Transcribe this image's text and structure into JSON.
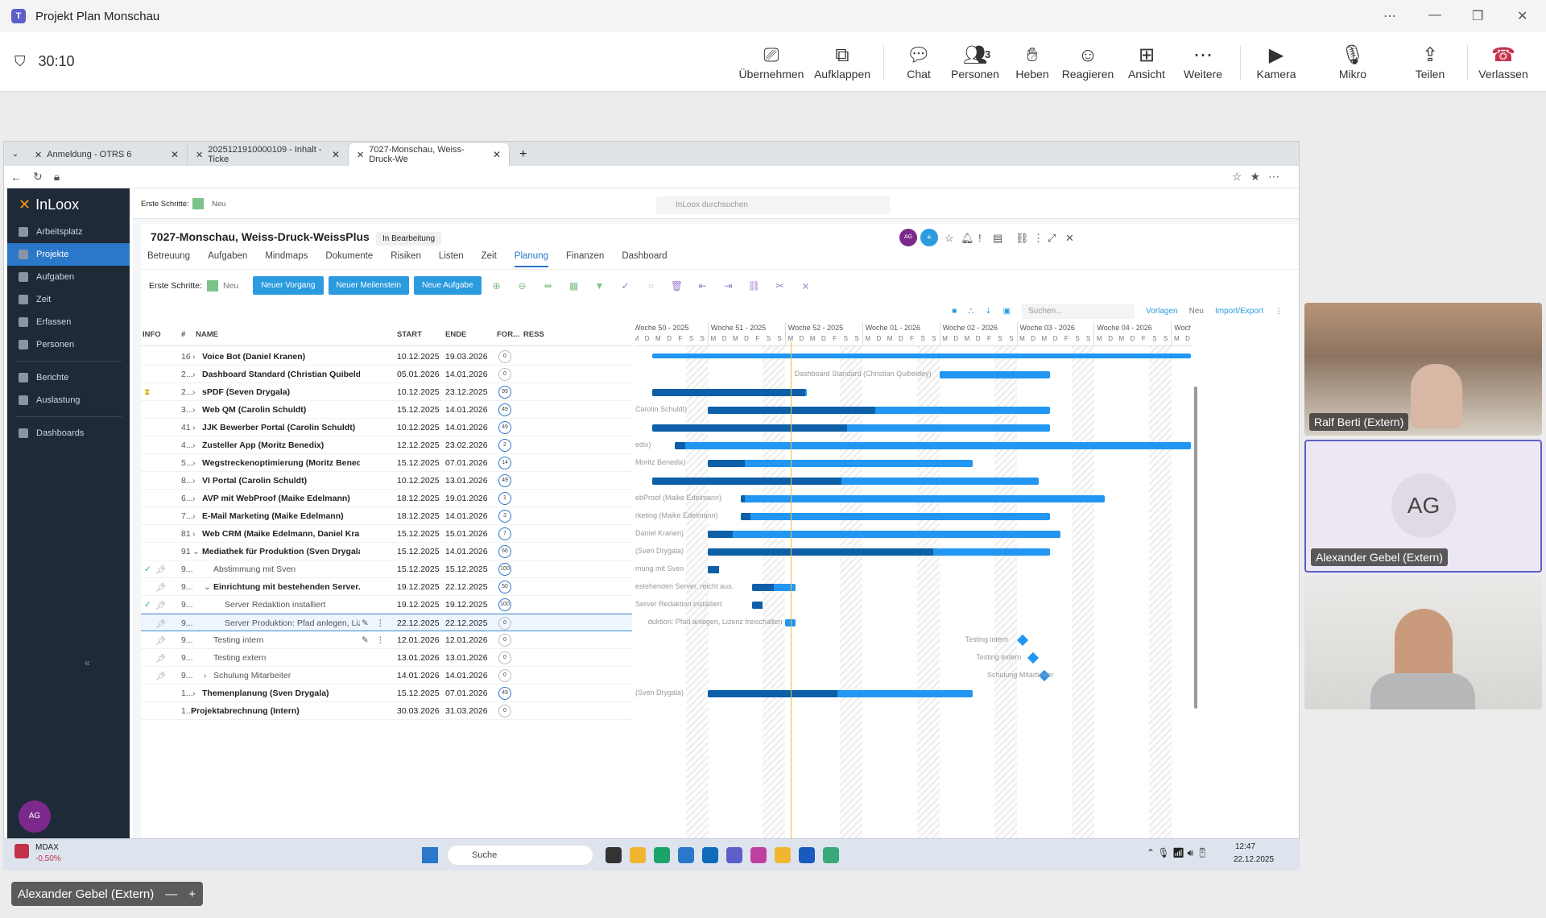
{
  "teams": {
    "window_title": "Projekt Plan Monschau",
    "timer": "30:10",
    "toolbar": [
      {
        "label": "Übernehmen",
        "icon": "share-screen-icon"
      },
      {
        "label": "Aufklappen",
        "icon": "popout-icon"
      },
      {
        "label": "Chat",
        "icon": "chat-icon"
      },
      {
        "label": "Personen",
        "icon": "people-icon",
        "count": "3"
      },
      {
        "label": "Heben",
        "icon": "raise-hand-icon"
      },
      {
        "label": "Reagieren",
        "icon": "react-icon"
      },
      {
        "label": "Ansicht",
        "icon": "view-icon"
      },
      {
        "label": "Weitere",
        "icon": "more-icon"
      },
      {
        "label": "Kamera",
        "icon": "camera-icon"
      },
      {
        "label": "Mikro",
        "icon": "mic-icon"
      },
      {
        "label": "Teilen",
        "icon": "share-icon"
      },
      {
        "label": "Verlassen",
        "icon": "hangup-icon"
      }
    ],
    "participants": [
      {
        "name": "Ralf Berti (Extern)"
      },
      {
        "name": "Alexander Gebel (Extern)",
        "initials": "AG"
      },
      {
        "name": ""
      }
    ],
    "pip_name": "Alexander Gebel (Extern)"
  },
  "browser": {
    "tabs": [
      {
        "label": "Anmeldung - OTRS 6"
      },
      {
        "label": "2025121910000109 - Inhalt - Ticke"
      },
      {
        "label": "7027-Monschau, Weiss-Druck-We"
      }
    ]
  },
  "inloox": {
    "brand": "InLoox",
    "nav": [
      "Arbeitsplatz",
      "Projekte",
      "Aufgaben",
      "Zeit",
      "Erfassen",
      "Personen",
      "Berichte",
      "Auslastung",
      "Dashboards"
    ],
    "active_nav": "Projekte",
    "user_initials": "AG",
    "top_first_steps": "Erste Schritte:",
    "top_new": "Neu",
    "search_placeholder": "InLoox durchsuchen",
    "project_title": "7027-Monschau, Weiss-Druck-WeissPlus",
    "project_status": "In Bearbeitung",
    "project_tabs": [
      "Betreuung",
      "Aufgaben",
      "Mindmaps",
      "Dokumente",
      "Risiken",
      "Listen",
      "Zeit",
      "Planung",
      "Finanzen",
      "Dashboard"
    ],
    "active_tab": "Planung",
    "toolbar": {
      "first_steps": "Erste Schritte:",
      "new": "Neu",
      "btn_vorgang": "Neuer Vorgang",
      "btn_meilenstein": "Neuer Meilenstein",
      "btn_aufgabe": "Neue Aufgabe",
      "search_placeholder": "Suchen...",
      "vorlagen": "Vorlagen",
      "neu2": "Neu",
      "import_export": "Import/Export"
    },
    "columns": {
      "info": "INFO",
      "num": "#",
      "name": "NAME",
      "start": "START",
      "end": "ENDE",
      "progress": "FOR...",
      "res": "RESS"
    },
    "rows": [
      {
        "num": "16",
        "name": "Voice Bot (Daniel Kranen)",
        "start": "10.12.2025",
        "end": "19.03.2026",
        "progress": "0",
        "bold": true,
        "level": 1
      },
      {
        "num": "2...",
        "name": "Dashboard Standard (Christian Quibeldey)",
        "start": "05.01.2026",
        "end": "14.01.2026",
        "progress": "0",
        "bold": true,
        "level": 1
      },
      {
        "num": "2...",
        "name": "sPDF (Seven Drygala)",
        "start": "10.12.2025",
        "end": "23.12.2025",
        "progress": "99",
        "bold": true,
        "level": 1
      },
      {
        "num": "3...",
        "name": "Web QM (Carolin Schuldt)",
        "start": "15.12.2025",
        "end": "14.01.2026",
        "progress": "49",
        "bold": true,
        "level": 1
      },
      {
        "num": "41",
        "name": "JJK Bewerber Portal (Carolin Schuldt)",
        "start": "10.12.2025",
        "end": "14.01.2026",
        "progress": "49",
        "bold": true,
        "level": 1
      },
      {
        "num": "4...",
        "name": "Zusteller App (Moritz Benedix)",
        "start": "12.12.2025",
        "end": "23.02.2026",
        "progress": "2",
        "bold": true,
        "level": 1
      },
      {
        "num": "5...",
        "name": "Wegstreckenoptimierung (Moritz Benedix)",
        "start": "15.12.2025",
        "end": "07.01.2026",
        "progress": "14",
        "bold": true,
        "level": 1
      },
      {
        "num": "8...",
        "name": "VI Portal (Carolin Schuldt)",
        "start": "10.12.2025",
        "end": "13.01.2026",
        "progress": "49",
        "bold": true,
        "level": 1
      },
      {
        "num": "6...",
        "name": "AVP mit WebProof (Maike Edelmann)",
        "start": "18.12.2025",
        "end": "19.01.2026",
        "progress": "1",
        "bold": true,
        "level": 1
      },
      {
        "num": "7...",
        "name": "E-Mail Marketing (Maike Edelmann)",
        "start": "18.12.2025",
        "end": "14.01.2026",
        "progress": "3",
        "bold": true,
        "level": 1
      },
      {
        "num": "81",
        "name": "Web CRM (Maike Edelmann, Daniel Kranen)",
        "start": "15.12.2025",
        "end": "15.01.2026",
        "progress": "7",
        "bold": true,
        "level": 1
      },
      {
        "num": "91",
        "name": "Mediathek für Produktion (Sven Drygala)",
        "start": "15.12.2025",
        "end": "14.01.2026",
        "progress": "66",
        "bold": true,
        "level": 1
      },
      {
        "num": "9...",
        "name": "Abstimmung mit Sven",
        "start": "15.12.2025",
        "end": "15.12.2025",
        "progress": "100",
        "bold": false,
        "level": 2
      },
      {
        "num": "9...",
        "name": "Einrichtung mit bestehenden Server. reicht aus.",
        "start": "19.12.2025",
        "end": "22.12.2025",
        "progress": "50",
        "bold": true,
        "level": 2
      },
      {
        "num": "9...",
        "name": "Server Redaktion installiert",
        "start": "19.12.2025",
        "end": "19.12.2025",
        "progress": "100",
        "bold": false,
        "level": 3
      },
      {
        "num": "9...",
        "name": "Server Produktion: Pfad anlegen, Lizenz",
        "start": "22.12.2025",
        "end": "22.12.2025",
        "progress": "0",
        "bold": false,
        "level": 3
      },
      {
        "num": "9...",
        "name": "Testing intern",
        "start": "12.01.2026",
        "end": "12.01.2026",
        "progress": "0",
        "bold": false,
        "level": 2
      },
      {
        "num": "9...",
        "name": "Testing extern",
        "start": "13.01.2026",
        "end": "13.01.2026",
        "progress": "0",
        "bold": false,
        "level": 2
      },
      {
        "num": "9...",
        "name": "Schulung Mitarbeiter",
        "start": "14.01.2026",
        "end": "14.01.2026",
        "progress": "0",
        "bold": false,
        "level": 2
      },
      {
        "num": "1...",
        "name": "Themenplanung (Sven Drygala)",
        "start": "15.12.2025",
        "end": "07.01.2026",
        "progress": "49",
        "bold": true,
        "level": 1
      },
      {
        "num": "1...",
        "name": "Projektabrechnung (Intern)",
        "start": "30.03.2026",
        "end": "31.03.2026",
        "progress": "0",
        "bold": true,
        "level": 0
      }
    ],
    "gantt_weeks": [
      "Woche 50 - 2025",
      "Woche 51 - 2025",
      "Woche 52 - 2025",
      "Woche 01 - 2026",
      "Woche 02 - 2026",
      "Woche 03 - 2026",
      "Woche 04 - 2026",
      "Woche"
    ],
    "gantt_days": [
      "M",
      "D",
      "M",
      "D",
      "F",
      "S",
      "S"
    ],
    "gantt_labels": [
      {
        "row": 1,
        "text": "Dashboard Standard (Christian Quibeldey)"
      },
      {
        "row": 3,
        "text": "Carolin Schuldt)"
      },
      {
        "row": 5,
        "text": "edix)"
      },
      {
        "row": 6,
        "text": "Moritz Benedix)"
      },
      {
        "row": 8,
        "text": "ebProof (Maike Edelmann)"
      },
      {
        "row": 9,
        "text": "rketing (Maike Edelmann)"
      },
      {
        "row": 10,
        "text": "Daniel Kranen)"
      },
      {
        "row": 11,
        "text": "(Sven Drygala)"
      },
      {
        "row": 12,
        "text": "mung mit Sven"
      },
      {
        "row": 13,
        "text": "estehenden Server. reicht aus."
      },
      {
        "row": 14,
        "text": "Server Redaktion installiert"
      },
      {
        "row": 15,
        "text": "duktion: Pfad anlegen, Lizenz freischalten"
      },
      {
        "row": 16,
        "text": "Testing intern"
      },
      {
        "row": 17,
        "text": "Testing extern"
      },
      {
        "row": 18,
        "text": "Schulung Mitarbeiter"
      },
      {
        "row": 19,
        "text": "(Sven Drygala)"
      }
    ]
  },
  "taskbar": {
    "stock_name": "MDAX",
    "stock_change": "-0,50%",
    "search": "Suche",
    "time": "12:47",
    "date": "22.12.2025"
  },
  "colors": {
    "accent": "#2b9be0",
    "sidebar": "#1e2a38",
    "bar": "#2196f3",
    "bar_done": "#0d5fa8",
    "leave": "#c4314b"
  }
}
